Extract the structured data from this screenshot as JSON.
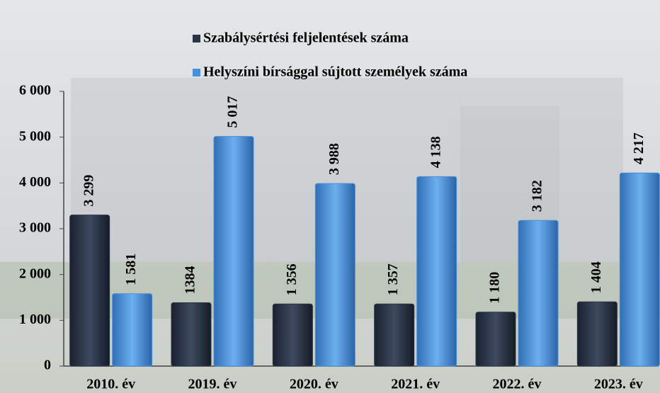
{
  "chart_data": {
    "type": "bar",
    "categories": [
      "2010. év",
      "2019. év",
      "2020. év",
      "2021. év",
      "2022. év",
      "2023. év"
    ],
    "series": [
      {
        "name": "Szabálysértési feljelentések száma",
        "color": "#2b3445",
        "values": [
          3299,
          1384,
          1356,
          1357,
          1180,
          1404
        ],
        "value_labels": [
          "3 299",
          "1384",
          "1 356",
          "1 357",
          "1 180",
          "1 404"
        ]
      },
      {
        "name": "Helyszíni bírsággal sújtott személyek száma",
        "color": "#4a90d9",
        "values": [
          1581,
          5017,
          3988,
          4138,
          3182,
          4217
        ],
        "value_labels": [
          "1 581",
          "5 017",
          "3 988",
          "4 138",
          "3 182",
          "4 217"
        ]
      }
    ],
    "ylim": [
      0,
      6000
    ],
    "yticks": [
      0,
      {
        "value": 1000,
        "label": "1 000"
      },
      {
        "value": 2000,
        "label": "2 000"
      },
      {
        "value": 3000,
        "label": "3 000"
      },
      {
        "value": 4000,
        "label": "4 000"
      },
      {
        "value": 5000,
        "label": "5 000"
      },
      {
        "value": 6000,
        "label": "6 000"
      }
    ],
    "grid": false
  }
}
